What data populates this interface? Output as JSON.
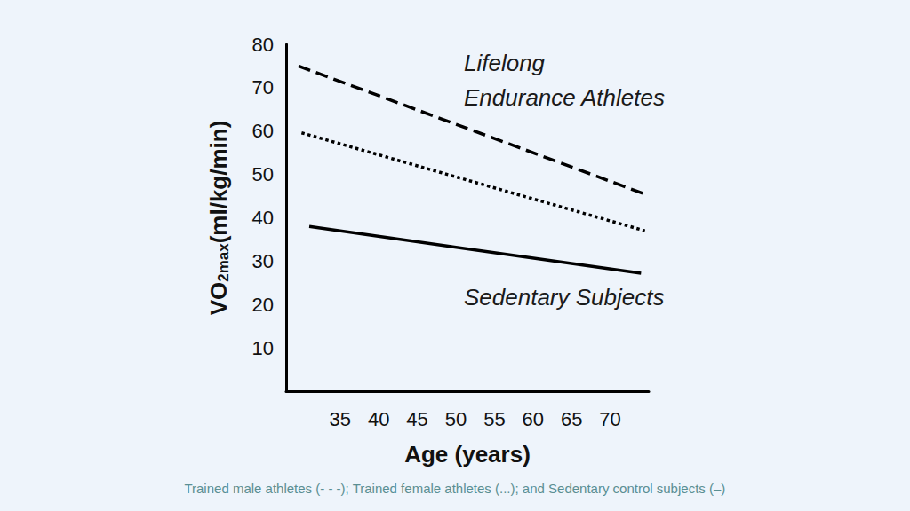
{
  "chart_data": {
    "type": "line",
    "xlabel": "Age (years)",
    "ylabel": "VO2max(ml/kg/min)",
    "xlim": [
      28,
      75
    ],
    "xticks": [
      35,
      40,
      45,
      50,
      55,
      60,
      65,
      70
    ],
    "ylim": [
      0,
      80
    ],
    "yticks": [
      10,
      20,
      30,
      40,
      50,
      60,
      70,
      80
    ],
    "grid": false,
    "series": [
      {
        "color": "#000000",
        "line_style": "dashed",
        "x": [
          29.6,
          74.9
        ],
        "values": [
          75,
          45.2
        ]
      },
      {
        "color": "#000000",
        "line_style": "dotted",
        "x": [
          30,
          74.5
        ],
        "values": [
          59.6,
          37
        ]
      },
      {
        "color": "#000000",
        "line_style": "solid",
        "x": [
          31,
          74
        ],
        "values": [
          38,
          27.2
        ]
      }
    ],
    "annotations": [
      "Lifelong",
      "Endurance Athletes",
      "Sedentary Subjects"
    ],
    "caption": "Trained male athletes (- - -); Trained female athletes (...); and Sedentary control subjects (–)"
  }
}
